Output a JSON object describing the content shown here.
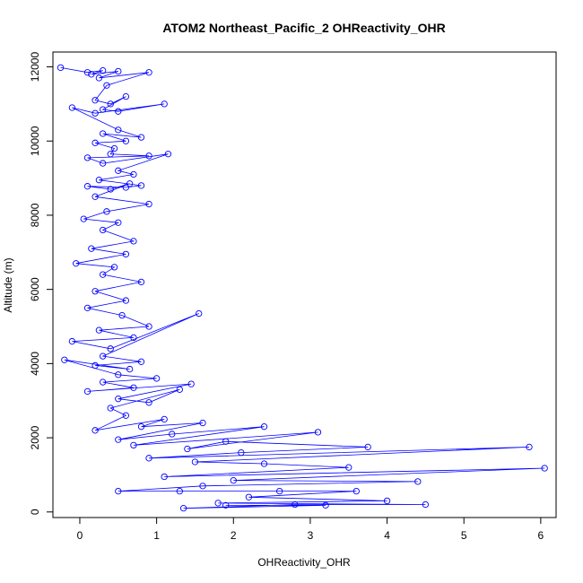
{
  "chart_data": {
    "type": "line",
    "title": "ATOM2 Northeast_Pacific_2 OHReactivity_OHR",
    "xlabel": "OHReactivity_OHR",
    "ylabel": "Altitude (m)",
    "xlim": [
      -0.35,
      6.2
    ],
    "ylim": [
      -150,
      12400
    ],
    "xticks": [
      0,
      1,
      2,
      3,
      4,
      5,
      6
    ],
    "yticks": [
      0,
      2000,
      4000,
      6000,
      8000,
      10000,
      12000
    ],
    "grid": false,
    "legend": "none",
    "series_color": "#0000ff",
    "marker": "open-circle",
    "series": [
      {
        "x": [
          -0.25,
          0.1,
          0.3,
          0.15,
          0.5,
          0.25,
          0.9,
          0.35,
          0.2,
          0.4,
          0.6,
          0.3,
          0.5,
          1.1,
          0.2,
          -0.1,
          0.5,
          0.8,
          0.3,
          0.6,
          0.2,
          0.45,
          0.4,
          0.9,
          0.1,
          0.3,
          1.15,
          0.5,
          0.7,
          0.25,
          0.8,
          0.6,
          0.1,
          0.4,
          0.65,
          0.2,
          0.9,
          0.35,
          0.05,
          0.5,
          0.3,
          0.7,
          0.15,
          0.6,
          -0.05,
          0.45,
          0.3,
          0.8,
          0.2,
          0.6,
          0.1,
          0.55,
          0.9,
          0.25,
          0.7,
          -0.1,
          0.4,
          1.55,
          0.3,
          0.8,
          0.2,
          0.65,
          -0.2,
          0.5,
          1.0,
          0.3,
          0.7,
          0.1,
          1.45,
          0.5,
          0.9,
          1.3,
          0.4,
          0.6,
          0.2,
          1.1,
          0.8,
          1.6,
          0.5,
          1.2,
          2.4,
          0.7,
          3.1,
          1.4,
          1.9,
          3.75,
          2.1,
          0.9,
          5.85,
          1.5,
          2.4,
          3.5,
          1.1,
          6.05,
          2.0,
          4.4,
          1.6,
          0.5,
          2.6,
          1.3,
          3.6,
          2.2,
          4.0,
          1.8,
          4.5,
          2.8,
          1.35,
          3.2,
          1.9
        ],
        "y": [
          11980,
          11850,
          11900,
          11800,
          11880,
          11700,
          11850,
          11500,
          11100,
          11000,
          11200,
          10850,
          10800,
          11000,
          10750,
          10900,
          10300,
          10100,
          10200,
          10000,
          9950,
          9800,
          9650,
          9600,
          9550,
          9400,
          9650,
          9200,
          9100,
          8950,
          8800,
          8750,
          8780,
          8700,
          8850,
          8500,
          8300,
          8100,
          7900,
          7800,
          7600,
          7300,
          7100,
          6950,
          6700,
          6600,
          6400,
          6200,
          5950,
          5700,
          5500,
          5300,
          5000,
          4900,
          4700,
          4600,
          4400,
          5350,
          4200,
          4050,
          3950,
          3850,
          4100,
          3700,
          3600,
          3500,
          3350,
          3250,
          3450,
          3050,
          2950,
          3300,
          2800,
          2600,
          2200,
          2500,
          2300,
          2400,
          1950,
          2100,
          2300,
          1800,
          2150,
          1700,
          1900,
          1750,
          1600,
          1450,
          1750,
          1350,
          1300,
          1200,
          950,
          1180,
          850,
          820,
          700,
          560,
          560,
          560,
          560,
          400,
          300,
          240,
          200,
          200,
          100,
          180,
          180
        ]
      }
    ]
  }
}
